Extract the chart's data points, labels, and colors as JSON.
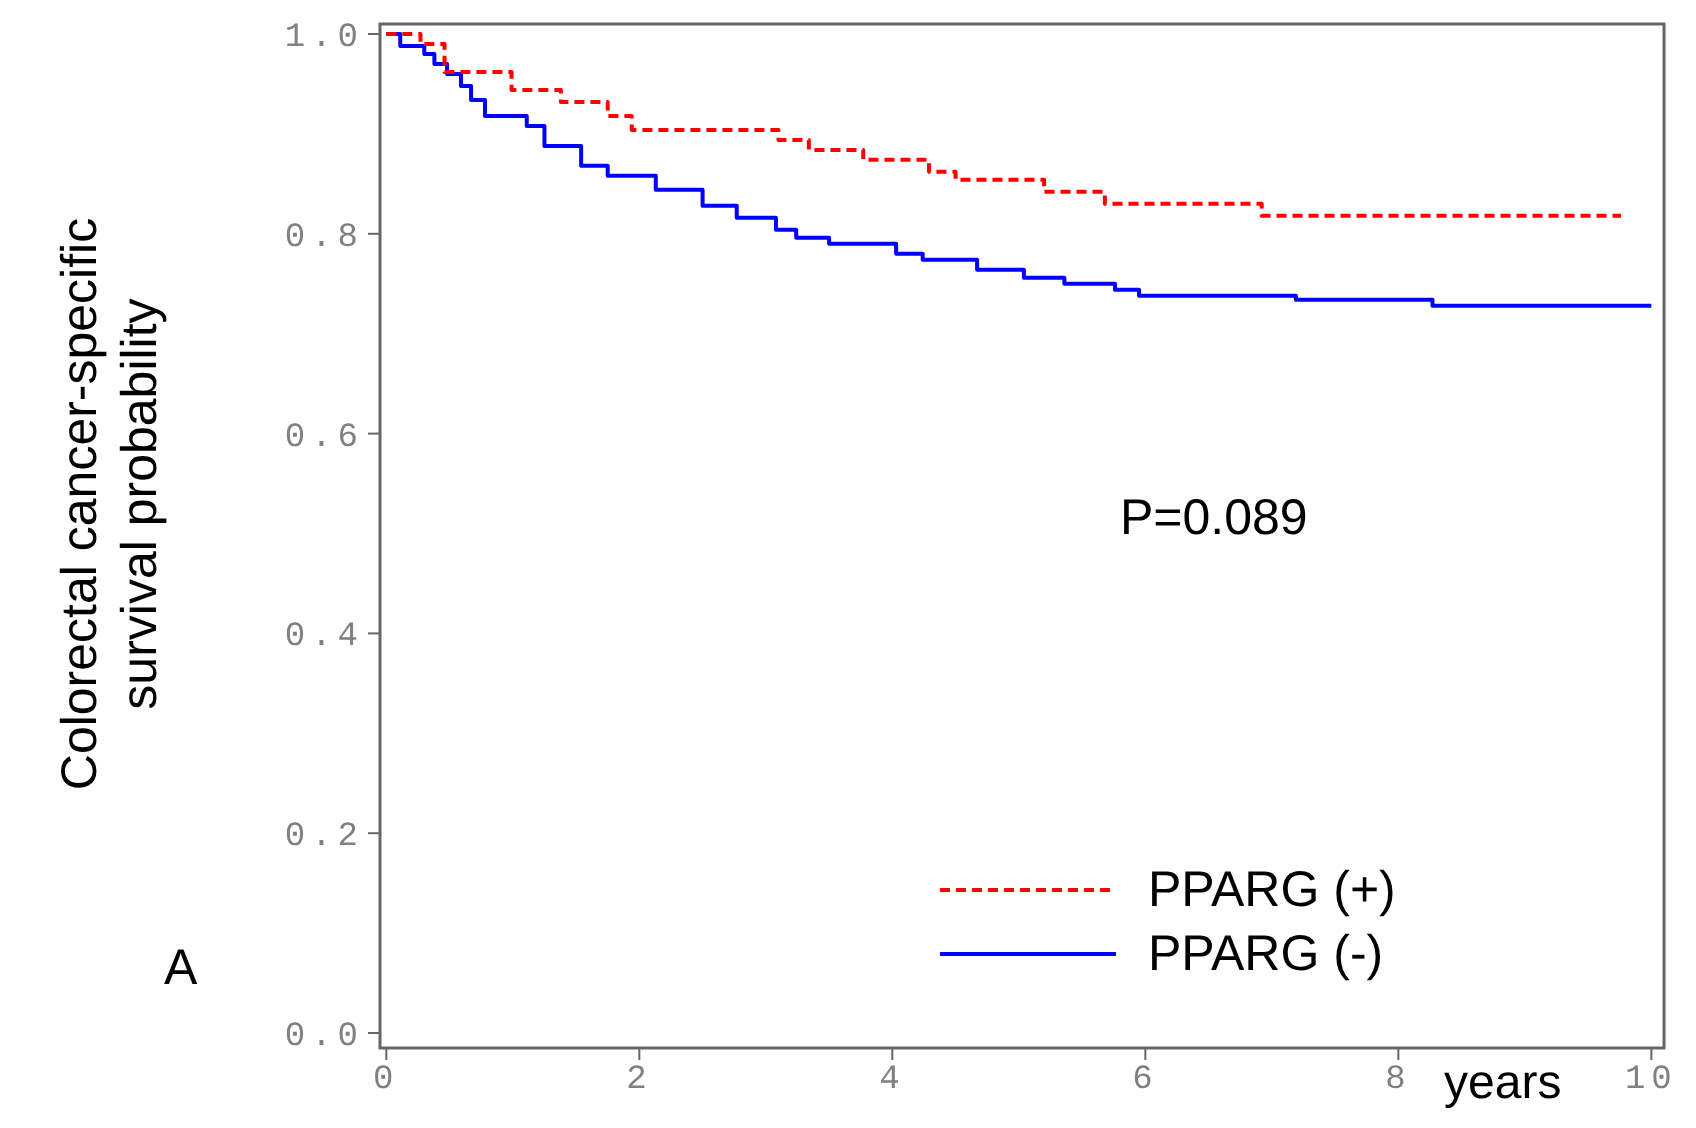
{
  "chart_data": {
    "type": "step",
    "xlabel": "years",
    "ylabel": "Colorectal cancer-specific\nsurvival probability",
    "annotations": [
      "P=0.089",
      "A"
    ],
    "xlim": [
      -0.05,
      10.1
    ],
    "ylim": [
      -0.015,
      1.01
    ],
    "xticks": [
      0,
      2,
      4,
      6,
      8,
      10
    ],
    "yticks": [
      {
        "value": 0,
        "label": "0.0"
      },
      {
        "value": 0.2,
        "label": "0.2"
      },
      {
        "value": 0.4,
        "label": "0.4"
      },
      {
        "value": 0.6,
        "label": "0.6"
      },
      {
        "value": 0.8,
        "label": "0.8"
      },
      {
        "value": 1,
        "label": "1.0"
      }
    ],
    "grid": false,
    "legend": "bottom right",
    "marker": "none",
    "series": [
      {
        "name": "PPARG (+)",
        "color": "#ff0000",
        "line_style": "dashed",
        "x": [
          0,
          0.27,
          0.46,
          0.99,
          1.38,
          1.75,
          1.94,
          3.1,
          3.34,
          3.77,
          4.29,
          4.5,
          5.2,
          5.68,
          6.92,
          9.76
        ],
        "values": [
          1.0,
          0.99,
          0.962,
          0.944,
          0.932,
          0.918,
          0.904,
          0.894,
          0.884,
          0.874,
          0.862,
          0.854,
          0.842,
          0.83,
          0.818,
          0.818
        ]
      },
      {
        "name": "PPARG (-)",
        "color": "#0000ff",
        "line_style": "solid",
        "x": [
          0,
          0.11,
          0.3,
          0.38,
          0.48,
          0.59,
          0.67,
          0.78,
          1.11,
          1.25,
          1.54,
          1.75,
          2.13,
          2.5,
          2.77,
          3.08,
          3.24,
          3.5,
          4.03,
          4.24,
          4.67,
          5.04,
          5.36,
          5.76,
          5.95,
          7.19,
          8.27,
          10.0
        ],
        "values": [
          1.0,
          0.988,
          0.98,
          0.97,
          0.96,
          0.948,
          0.934,
          0.918,
          0.908,
          0.888,
          0.868,
          0.858,
          0.844,
          0.828,
          0.816,
          0.804,
          0.796,
          0.79,
          0.78,
          0.774,
          0.764,
          0.756,
          0.75,
          0.744,
          0.738,
          0.734,
          0.728,
          0.728
        ]
      }
    ]
  }
}
